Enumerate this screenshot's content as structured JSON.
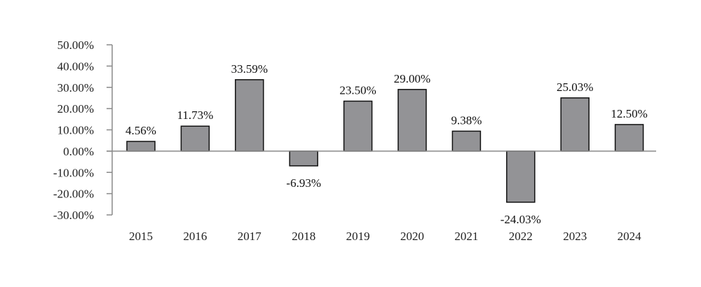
{
  "chart_data": {
    "type": "bar",
    "categories": [
      "2015",
      "2016",
      "2017",
      "2018",
      "2019",
      "2020",
      "2021",
      "2022",
      "2023",
      "2024"
    ],
    "values": [
      4.56,
      11.73,
      33.59,
      -6.93,
      23.5,
      29.0,
      9.38,
      -24.03,
      25.03,
      12.5
    ],
    "data_labels": [
      "4.56%",
      "11.73%",
      "33.59%",
      "-6.93%",
      "23.50%",
      "29.00%",
      "9.38%",
      "-24.03%",
      "25.03%",
      "12.50%"
    ],
    "y_ticks": [
      50,
      40,
      30,
      20,
      10,
      0,
      -10,
      -20,
      -30
    ],
    "y_tick_labels": [
      "50.00%",
      "40.00%",
      "30.00%",
      "20.00%",
      "10.00%",
      "0.00%",
      "-10.00%",
      "-20.00%",
      "-30.00%"
    ],
    "ylim": [
      -30,
      50
    ],
    "title": "",
    "xlabel": "",
    "ylabel": "",
    "grid": false,
    "legend": "none",
    "colors": {
      "bar_fill": "#939396",
      "bar_stroke": "#111111",
      "axis": "#8a8a8a",
      "text": "#222222"
    }
  }
}
